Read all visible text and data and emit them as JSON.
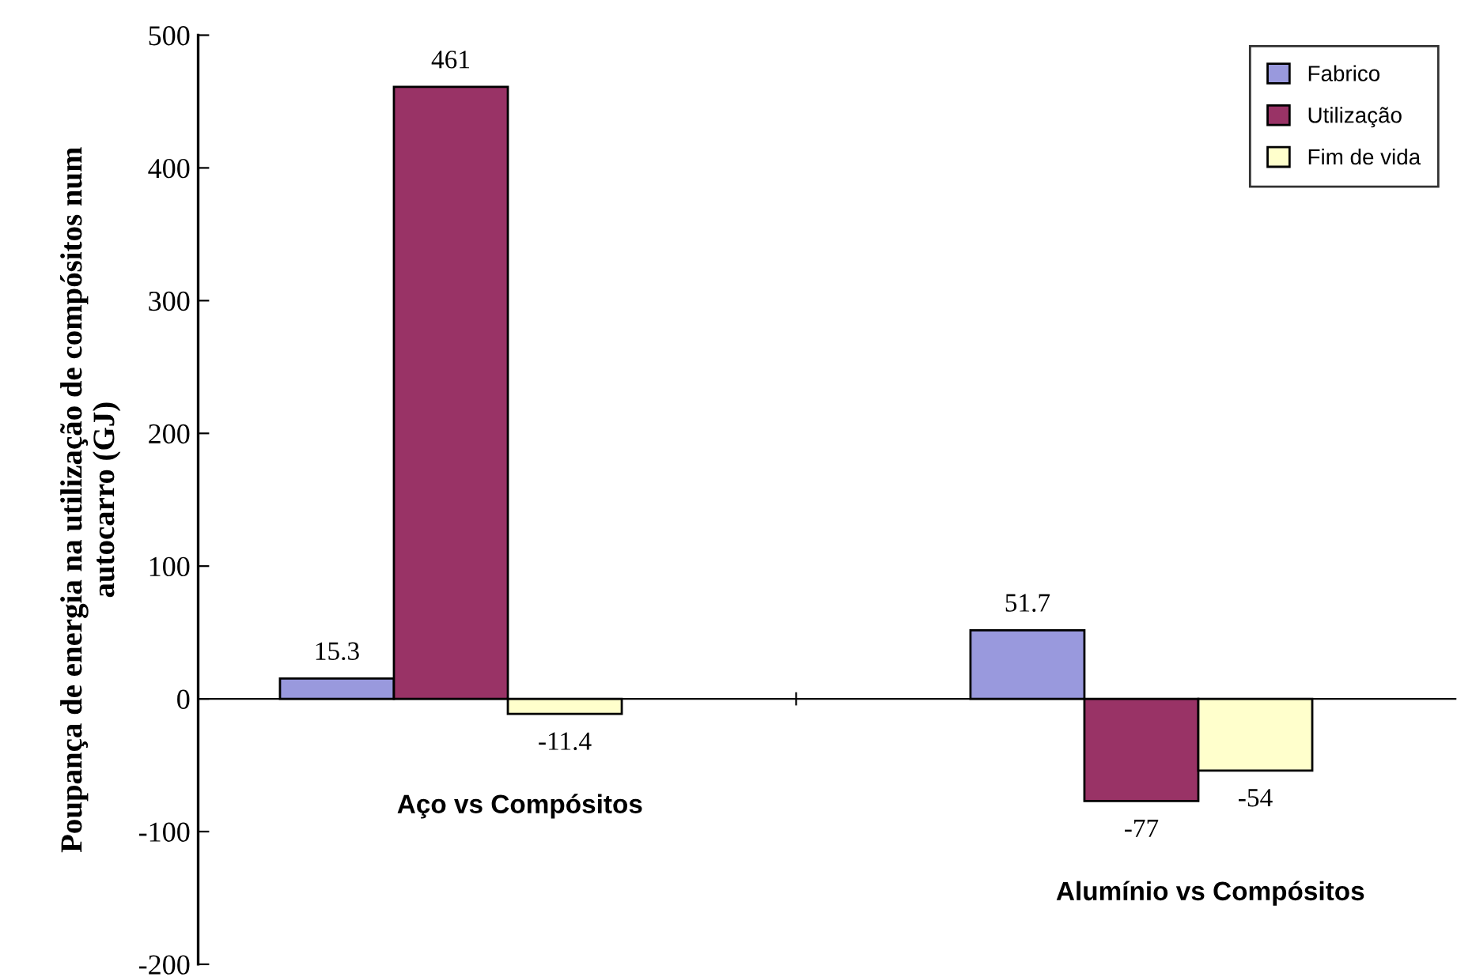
{
  "chart_data": {
    "type": "bar",
    "ylabel": "Poupança de energia na utilização de compósitos num\nautocarro (GJ)",
    "categories": [
      "Aço vs Compósitos",
      "Alumínio vs Compósitos"
    ],
    "series": [
      {
        "name": "Fabrico",
        "color": "#9999dd",
        "values": [
          15.3,
          51.7
        ]
      },
      {
        "name": "Utilização",
        "color": "#993366",
        "values": [
          461,
          -77
        ]
      },
      {
        "name": "Fim de vida",
        "color": "#ffffcc",
        "values": [
          -11.4,
          -54
        ]
      }
    ],
    "ylim": [
      -200,
      500
    ],
    "yticks": [
      -200,
      -100,
      0,
      100,
      200,
      300,
      400,
      500
    ],
    "data_labels": true,
    "legend": "top right"
  }
}
